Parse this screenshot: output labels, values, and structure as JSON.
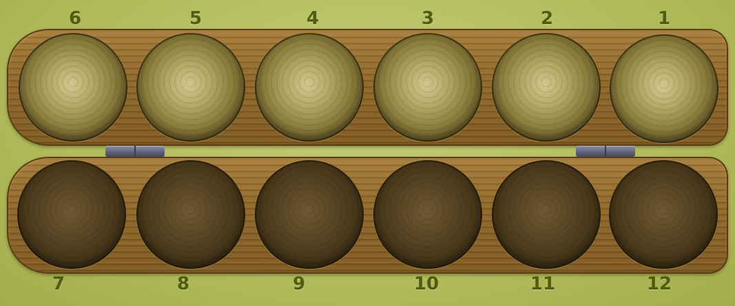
{
  "board": {
    "top_row": [
      {
        "label": "6"
      },
      {
        "label": "5"
      },
      {
        "label": "4"
      },
      {
        "label": "3"
      },
      {
        "label": "2"
      },
      {
        "label": "1"
      }
    ],
    "bottom_row": [
      {
        "label": "7"
      },
      {
        "label": "8"
      },
      {
        "label": "9"
      },
      {
        "label": "10"
      },
      {
        "label": "11"
      },
      {
        "label": "12"
      }
    ]
  },
  "colors": {
    "background": "#b3bd5e",
    "wood": "#8b6428",
    "top_pit_center": "#d2c98e",
    "bottom_pit_center": "#6e5934",
    "label": "#4e5d10",
    "hinge": "#5d5f78"
  }
}
